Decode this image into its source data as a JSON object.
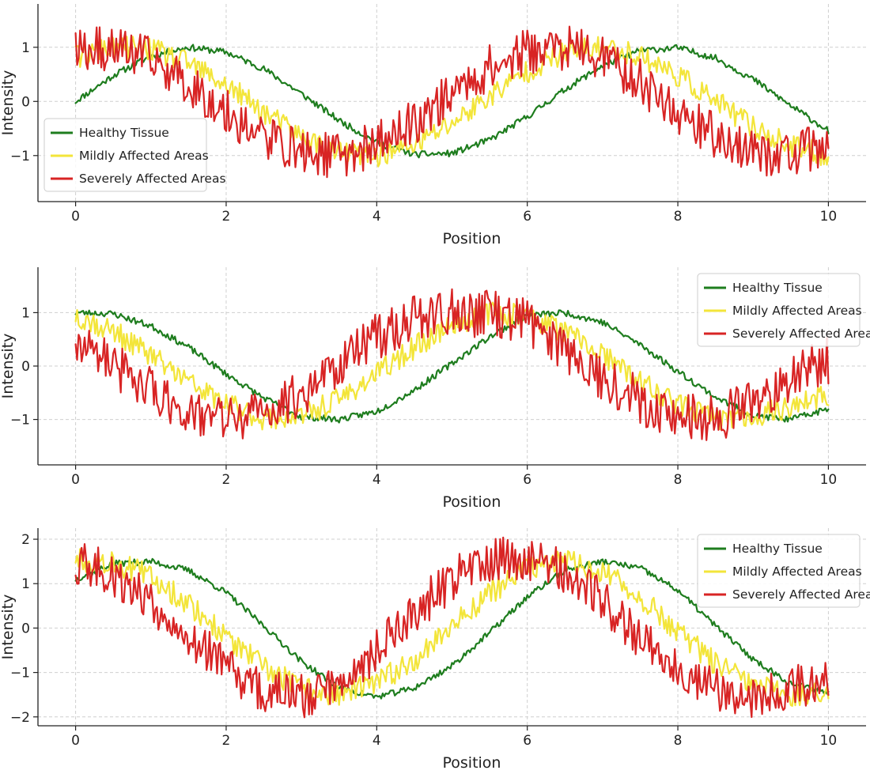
{
  "chart_data": [
    {
      "type": "line",
      "title": "",
      "xlabel": "Position",
      "ylabel": "Intensity",
      "xlim": [
        -0.5,
        10.5
      ],
      "ylim": [
        -1.85,
        1.8
      ],
      "xticks": [
        0,
        2,
        4,
        6,
        8,
        10
      ],
      "yticks": [
        -1,
        0,
        1
      ],
      "grid": true,
      "legend_position": "lower-left",
      "noise": [
        0.06,
        0.22,
        0.42
      ],
      "seed": 11,
      "x": [
        0,
        0.5,
        1,
        1.5,
        2,
        2.5,
        3,
        3.5,
        4,
        4.5,
        5,
        5.5,
        6,
        6.5,
        7,
        7.5,
        8,
        8.5,
        9,
        9.5,
        10
      ],
      "series": [
        {
          "name": "Healthy Tissue",
          "color": "#1e7d1e",
          "values": [
            0.0,
            0.48,
            0.84,
            1.0,
            0.91,
            0.6,
            0.14,
            -0.35,
            -0.76,
            -0.98,
            -0.96,
            -0.71,
            -0.28,
            0.22,
            0.66,
            0.94,
            0.99,
            0.8,
            0.41,
            -0.08,
            -0.54
          ]
        },
        {
          "name": "Mildly Affected Areas",
          "color": "#f3e53a",
          "values": [
            0.8,
            1.0,
            0.96,
            0.7,
            0.3,
            -0.2,
            -0.66,
            -0.95,
            -1.0,
            -0.8,
            -0.4,
            0.1,
            0.56,
            0.9,
            1.0,
            0.85,
            0.48,
            0.0,
            -0.47,
            -0.84,
            -1.0
          ]
        },
        {
          "name": "Severely Affected Areas",
          "color": "#d82424",
          "values": [
            0.95,
            1.0,
            0.77,
            0.33,
            -0.2,
            -0.65,
            -0.94,
            -1.0,
            -0.8,
            -0.38,
            0.15,
            0.62,
            0.92,
            1.0,
            0.8,
            0.36,
            -0.18,
            -0.64,
            -0.93,
            -1.0,
            -0.78
          ]
        }
      ]
    },
    {
      "type": "line",
      "title": "",
      "xlabel": "Position",
      "ylabel": "Intensity",
      "xlim": [
        -0.5,
        10.5
      ],
      "ylim": [
        -1.85,
        1.85
      ],
      "xticks": [
        0,
        2,
        4,
        6,
        8,
        10
      ],
      "yticks": [
        -1,
        0,
        1
      ],
      "grid": true,
      "legend_position": "upper-right",
      "noise": [
        0.06,
        0.22,
        0.45
      ],
      "seed": 23,
      "x": [
        0,
        0.5,
        1,
        1.5,
        2,
        2.5,
        3,
        3.5,
        4,
        4.5,
        5,
        5.5,
        6,
        6.5,
        7,
        7.5,
        8,
        8.5,
        9,
        9.5,
        10
      ],
      "series": [
        {
          "name": "Healthy Tissue",
          "color": "#1e7d1e",
          "values": [
            1.0,
            0.98,
            0.75,
            0.35,
            -0.15,
            -0.6,
            -0.95,
            -1.0,
            -0.85,
            -0.45,
            0.05,
            0.55,
            0.95,
            1.0,
            0.82,
            0.4,
            -0.1,
            -0.58,
            -0.93,
            -1.0,
            -0.8
          ]
        },
        {
          "name": "Mildly Affected Areas",
          "color": "#f3e53a",
          "values": [
            0.95,
            0.65,
            0.2,
            -0.3,
            -0.72,
            -0.98,
            -0.95,
            -0.62,
            -0.15,
            0.35,
            0.78,
            1.0,
            0.95,
            0.65,
            0.2,
            -0.3,
            -0.72,
            -0.98,
            -0.95,
            -0.75,
            -0.55
          ]
        },
        {
          "name": "Severely Affected Areas",
          "color": "#d82424",
          "values": [
            0.5,
            0.0,
            -0.45,
            -0.85,
            -1.0,
            -0.9,
            -0.5,
            0.05,
            0.55,
            0.9,
            1.0,
            0.98,
            0.85,
            0.35,
            -0.2,
            -0.65,
            -0.95,
            -1.0,
            -0.7,
            -0.2,
            0.1
          ]
        }
      ]
    },
    {
      "type": "line",
      "title": "",
      "xlabel": "Position",
      "ylabel": "Intensity",
      "xlim": [
        -0.5,
        10.5
      ],
      "ylim": [
        -2.2,
        2.25
      ],
      "xticks": [
        0,
        2,
        4,
        6,
        8,
        10
      ],
      "yticks": [
        -2,
        -1,
        0,
        1,
        2
      ],
      "grid": true,
      "legend_position": "upper-right",
      "noise": [
        0.07,
        0.28,
        0.5
      ],
      "seed": 37,
      "x": [
        0,
        0.5,
        1,
        1.5,
        2,
        2.5,
        3,
        3.5,
        4,
        4.5,
        5,
        5.5,
        6,
        6.5,
        7,
        7.5,
        8,
        8.5,
        9,
        9.5,
        10
      ],
      "series": [
        {
          "name": "Healthy Tissue",
          "color": "#1e7d1e",
          "values": [
            1.1,
            1.45,
            1.5,
            1.3,
            0.8,
            0.05,
            -0.75,
            -1.35,
            -1.55,
            -1.35,
            -0.85,
            -0.1,
            0.7,
            1.3,
            1.5,
            1.35,
            0.85,
            0.05,
            -0.7,
            -1.25,
            -1.45
          ]
        },
        {
          "name": "Mildly Affected Areas",
          "color": "#f3e53a",
          "values": [
            1.55,
            1.5,
            1.15,
            0.55,
            -0.2,
            -0.9,
            -1.35,
            -1.5,
            -1.25,
            -0.7,
            0.05,
            0.8,
            1.35,
            1.5,
            1.25,
            0.7,
            -0.1,
            -0.8,
            -1.3,
            -1.5,
            -1.5
          ]
        },
        {
          "name": "Severely Affected Areas",
          "color": "#d82424",
          "values": [
            1.5,
            1.2,
            0.6,
            -0.15,
            -0.9,
            -1.45,
            -1.55,
            -1.2,
            -0.5,
            0.35,
            1.1,
            1.55,
            1.55,
            1.3,
            0.6,
            -0.2,
            -0.85,
            -1.35,
            -1.55,
            -1.35,
            -1.1
          ]
        }
      ]
    }
  ]
}
